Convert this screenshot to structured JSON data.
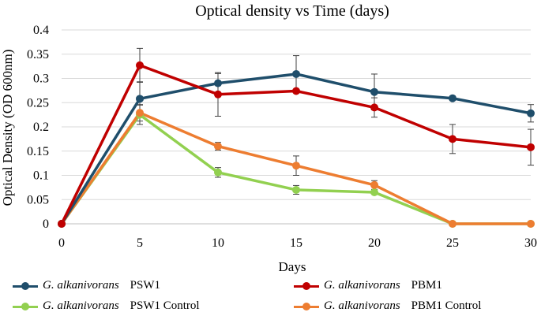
{
  "chart_data": {
    "type": "line",
    "title": "Optical density vs Time (days)",
    "xlabel": "Days",
    "ylabel": "Optical Density (OD 600nm)",
    "x": [
      0,
      5,
      10,
      15,
      20,
      25,
      30
    ],
    "xlim": [
      0,
      30
    ],
    "ylim": [
      0,
      0.4
    ],
    "xticks": [
      0,
      5,
      10,
      15,
      20,
      25,
      30
    ],
    "yticks": [
      "0",
      "0.05",
      "0.1",
      "0.15",
      "0.2",
      "0.25",
      "0.3",
      "0.35",
      "0.4"
    ],
    "grid": true,
    "legend_position": "bottom",
    "series": [
      {
        "name": "G. alkanivorans PSW1",
        "species": "G. alkanivorans",
        "strain": "PSW1",
        "color": "#1f4e6b",
        "values": [
          0,
          0.258,
          0.29,
          0.309,
          0.272,
          0.259,
          0.228
        ],
        "errors": [
          0,
          0.035,
          0.02,
          0.038,
          0.037,
          0,
          0.018
        ]
      },
      {
        "name": "G. alkanivorans PBM1",
        "species": "G. alkanivorans",
        "strain": "PBM1",
        "color": "#c00000",
        "values": [
          0,
          0.327,
          0.267,
          0.274,
          0.24,
          0.175,
          0.158
        ],
        "errors": [
          0,
          0.035,
          0.045,
          0,
          0.02,
          0.03,
          0.037
        ]
      },
      {
        "name": "G. alkanivorans PSW1 Control",
        "species": "G. alkanivorans",
        "strain": "PSW1 Control",
        "color": "#92d050",
        "values": [
          0,
          0.225,
          0.106,
          0.07,
          0.065,
          0,
          0
        ],
        "errors": [
          0,
          0.02,
          0.01,
          0.009,
          0,
          0,
          0
        ]
      },
      {
        "name": "G. alkanivorans PBM1 Control",
        "species": "G. alkanivorans",
        "strain": "PBM1 Control",
        "color": "#ed7d31",
        "values": [
          0,
          0.229,
          0.16,
          0.12,
          0.08,
          0,
          0
        ],
        "errors": [
          0,
          0.017,
          0.008,
          0.02,
          0.009,
          0,
          0
        ]
      }
    ]
  }
}
